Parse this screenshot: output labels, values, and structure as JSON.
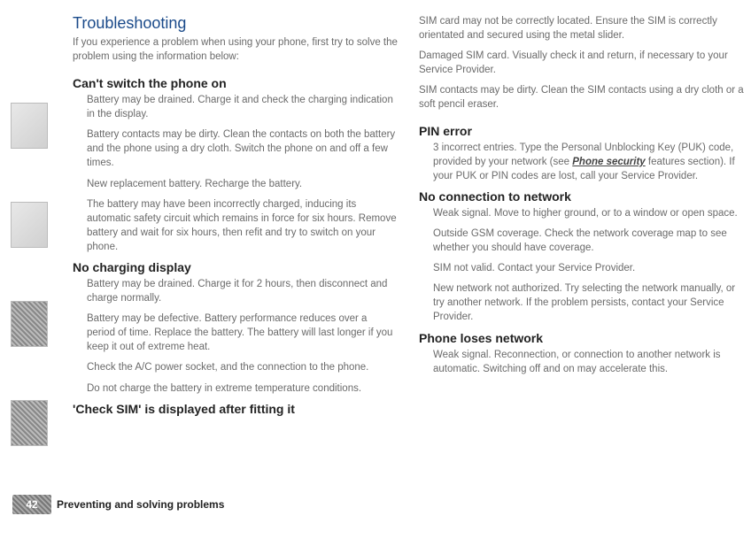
{
  "title": "Troubleshooting",
  "intro": "If you experience a problem when using your phone, first try to solve the problem using the information below:",
  "sections_left": [
    {
      "heading": "Can't switch the phone on",
      "paras": [
        "Battery may be drained. Charge it and check the charging indication in the display.",
        "Battery contacts may be dirty. Clean the contacts on both the battery and the phone using a dry cloth. Switch the phone on and off a few times.",
        "New replacement battery. Recharge the battery.",
        "The battery may have been incorrectly charged, inducing its automatic safety circuit which remains in force for six hours. Remove battery and wait for six hours, then refit and try to switch on your phone."
      ]
    },
    {
      "heading": "No charging display",
      "paras": [
        "Battery may be drained. Charge it for 2 hours, then disconnect and charge normally.",
        "Battery may be defective. Battery performance reduces over a period of time. Replace the battery. The battery will last longer if you keep it out of extreme heat.",
        "Check the A/C power socket, and the connection to the phone.",
        "Do not charge the battery in extreme temperature conditions."
      ]
    },
    {
      "heading": "'Check SIM' is displayed after fitting it",
      "paras": []
    }
  ],
  "sections_right_pre": [
    "SIM card may not be correctly located. Ensure the SIM is correctly orientated and secured using the metal slider.",
    "Damaged SIM card. Visually check it and return, if necessary to your Service Provider.",
    "SIM contacts may be dirty. Clean the SIM contacts using a dry cloth or a soft pencil eraser."
  ],
  "sections_right": [
    {
      "heading": "PIN error",
      "paras": [
        {
          "pre": "3 incorrect entries. Type the Personal Unblocking Key (PUK) code, provided by your network (see ",
          "link": "Phone security",
          "post": " features section). If your PUK or PIN codes are lost, call your Service Provider."
        }
      ]
    },
    {
      "heading": "No connection to network",
      "paras": [
        {
          "text": "Weak signal. Move to higher ground, or to a window or open space."
        },
        {
          "text": "Outside GSM coverage. Check the network coverage map to see whether you should have coverage."
        },
        {
          "text": "SIM not valid. Contact your Service Provider."
        },
        {
          "text": "New network not authorized. Try selecting the network manually, or try another network. If the problem persists, contact your Service Provider."
        }
      ]
    },
    {
      "heading": "Phone loses network",
      "paras": [
        {
          "text": "Weak signal. Reconnection, or connection to another network is automatic. Switching off and on may accelerate this."
        }
      ]
    }
  ],
  "footer": {
    "page_num": "42",
    "title": "Preventing and solving problems"
  }
}
